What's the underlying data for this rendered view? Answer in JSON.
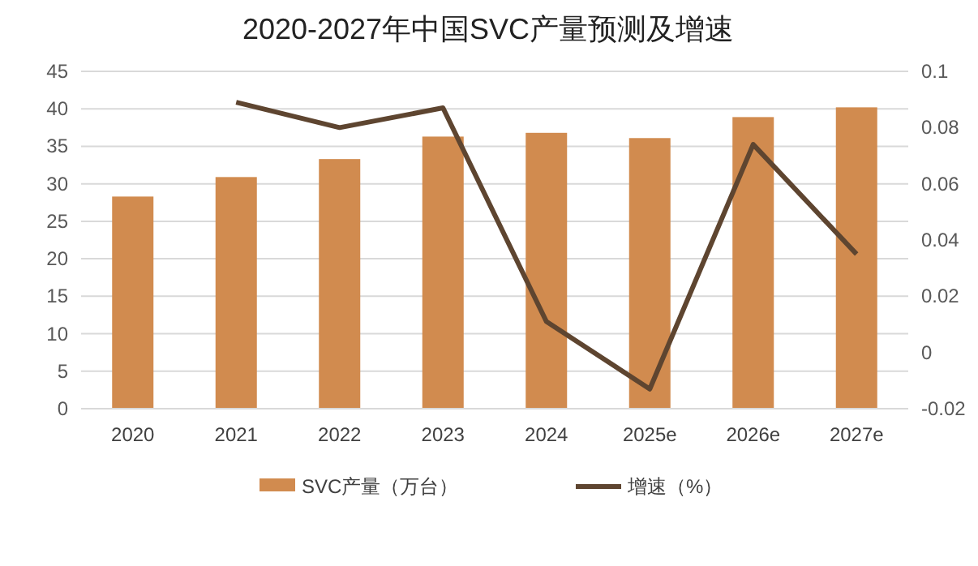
{
  "chart_data": {
    "type": "bar",
    "title": "2020-2027年中国SVC产量预测及增速",
    "categories": [
      "2020",
      "2021",
      "2022",
      "2023",
      "2024",
      "2025e",
      "2026e",
      "2027e"
    ],
    "series": [
      {
        "name": "SVC产量（万台）",
        "color": "#d18b4f",
        "values": [
          28.3,
          30.9,
          33.3,
          36.3,
          36.8,
          36.1,
          38.9,
          40.2
        ]
      },
      {
        "name": "增速（%）",
        "type": "line",
        "axis": "y2",
        "color": "#5e4530",
        "values": [
          null,
          0.089,
          0.08,
          0.087,
          0.011,
          -0.013,
          0.074,
          0.035
        ]
      }
    ],
    "ylim": [
      0,
      45
    ],
    "yticks": [
      0,
      5,
      10,
      15,
      20,
      25,
      30,
      35,
      40,
      45
    ],
    "y2lim": [
      -0.02,
      0.1
    ],
    "y2ticks": [
      -0.02,
      0,
      0.02,
      0.04,
      0.06,
      0.08,
      0.1
    ],
    "grid": "y",
    "legend": "bottom",
    "marker": "none",
    "line_style": "solid"
  }
}
